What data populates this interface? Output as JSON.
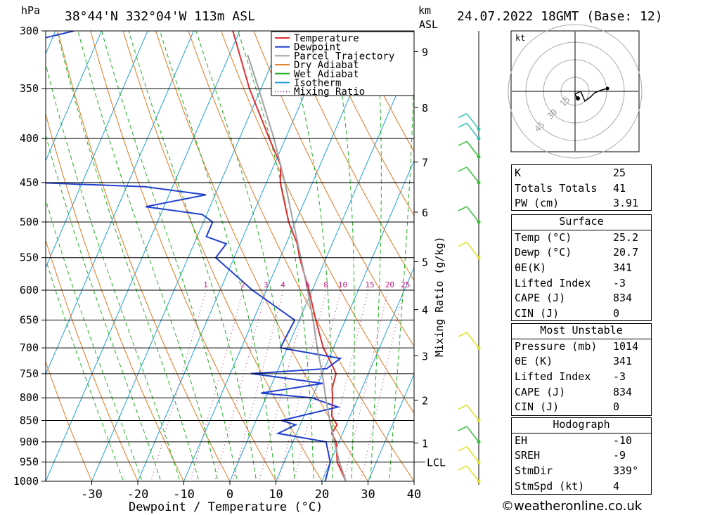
{
  "header": {
    "location": "38°44'N  332°04'W  113m  ASL",
    "datetime": "24.07.2022  18GMT  (Base: 12)",
    "pressure_unit": "hPa",
    "height_unit": "km",
    "height_unit_sub": "ASL"
  },
  "chart_data": {
    "type": "skew-t",
    "title": "38°44'N 332°04'W 113m ASL",
    "xlabel": "Dewpoint / Temperature (°C)",
    "ylabel": "hPa",
    "mixing_ratio_label": "Mixing Ratio (g/kg)",
    "xlim": [
      -40,
      40
    ],
    "ylim": [
      1000,
      300
    ],
    "skew_degC_per_logunit": 35,
    "pressure_ticks": [
      300,
      350,
      400,
      450,
      500,
      550,
      600,
      650,
      700,
      750,
      800,
      850,
      900,
      950,
      1000
    ],
    "temperature_ticks": [
      -30,
      -20,
      -10,
      0,
      10,
      20,
      30,
      40
    ],
    "km_ticks": [
      {
        "label": "1",
        "p": 903
      },
      {
        "label": "2",
        "p": 805
      },
      {
        "label": "3",
        "p": 715
      },
      {
        "label": "4",
        "p": 632
      },
      {
        "label": "5",
        "p": 556
      },
      {
        "label": "6",
        "p": 487
      },
      {
        "label": "7",
        "p": 426
      },
      {
        "label": "8",
        "p": 368
      },
      {
        "label": "9",
        "p": 317
      }
    ],
    "lcl": {
      "label": "LCL",
      "p": 950
    },
    "mixing_ratio_lines": [
      "1",
      "2",
      "3",
      "4",
      "6",
      "8",
      "10",
      "15",
      "20",
      "25"
    ],
    "legend": [
      "Temperature",
      "Dewpoint",
      "Parcel Trajectory",
      "Dry Adiabat",
      "Wet Adiabat",
      "Isotherm",
      "Mixing Ratio"
    ],
    "series": [
      {
        "name": "Temperature",
        "color": "#e03030",
        "points": [
          [
            1000,
            25.2
          ],
          [
            950,
            21.5
          ],
          [
            900,
            19.4
          ],
          [
            880,
            17.6
          ],
          [
            860,
            18.0
          ],
          [
            840,
            16.0
          ],
          [
            800,
            14.5
          ],
          [
            780,
            13.5
          ],
          [
            750,
            13.0
          ],
          [
            720,
            10.0
          ],
          [
            700,
            7.8
          ],
          [
            650,
            3.6
          ],
          [
            600,
            -0.7
          ],
          [
            550,
            -5.8
          ],
          [
            530,
            -7.6
          ],
          [
            500,
            -11.5
          ],
          [
            450,
            -17.0
          ],
          [
            430,
            -18.5
          ],
          [
            400,
            -23.5
          ],
          [
            350,
            -32.5
          ],
          [
            300,
            -41.5
          ]
        ]
      },
      {
        "name": "Dewpoint",
        "color": "#2040d0",
        "points": [
          [
            1000,
            20.7
          ],
          [
            950,
            20.0
          ],
          [
            900,
            17.2
          ],
          [
            880,
            6.0
          ],
          [
            860,
            9.0
          ],
          [
            850,
            5.5
          ],
          [
            820,
            16.5
          ],
          [
            800,
            10.0
          ],
          [
            790,
            -1.5
          ],
          [
            770,
            11.0
          ],
          [
            755,
            -1.0
          ],
          [
            750,
            -5.5
          ],
          [
            740,
            10.5
          ],
          [
            720,
            12.5
          ],
          [
            700,
            -1.5
          ],
          [
            650,
            -1.0
          ],
          [
            600,
            -13.0
          ],
          [
            550,
            -24.0
          ],
          [
            530,
            -23.0
          ],
          [
            520,
            -28.0
          ],
          [
            500,
            -28.0
          ],
          [
            490,
            -31.0
          ],
          [
            480,
            -44.0
          ],
          [
            465,
            -32.0
          ],
          [
            455,
            -46.0
          ],
          [
            450,
            -70.0
          ],
          [
            400,
            -83.0
          ],
          [
            390,
            -86.0
          ],
          [
            310,
            -86.0
          ],
          [
            300,
            -76.0
          ]
        ]
      },
      {
        "name": "Parcel Trajectory",
        "color": "#a0a0a0",
        "points": [
          [
            1000,
            25.2
          ],
          [
            950,
            22.0
          ],
          [
            900,
            19.0
          ],
          [
            850,
            16.0
          ],
          [
            800,
            13.0
          ],
          [
            750,
            10.0
          ],
          [
            700,
            6.5
          ],
          [
            650,
            3.0
          ],
          [
            600,
            -1.0
          ],
          [
            550,
            -5.5
          ],
          [
            500,
            -10.5
          ],
          [
            450,
            -16.0
          ],
          [
            400,
            -22.5
          ],
          [
            350,
            -30.5
          ],
          [
            320,
            -36.0
          ]
        ]
      }
    ],
    "winds": [
      {
        "p": 1000,
        "color": "yellow",
        "label": "1000"
      },
      {
        "p": 950,
        "color": "yellow",
        "label": "950"
      },
      {
        "p": 900,
        "color": "green",
        "label": "900"
      },
      {
        "p": 850,
        "color": "yellow",
        "label": "850"
      },
      {
        "p": 700,
        "color": "yellow",
        "label": "700"
      },
      {
        "p": 550,
        "color": "yellow",
        "label": "550"
      },
      {
        "p": 500,
        "color": "green",
        "label": "500"
      },
      {
        "p": 450,
        "color": "green",
        "label": "450"
      },
      {
        "p": 420,
        "color": "green",
        "label": "420"
      },
      {
        "p": 400,
        "color": "teal",
        "label": "400"
      },
      {
        "p": 390,
        "color": "teal",
        "label": "390"
      }
    ],
    "hodograph": {
      "unit": "kt",
      "rings": [
        "15",
        "30",
        "45"
      ]
    }
  },
  "indices": {
    "general": [
      {
        "label": "K",
        "value": "25"
      },
      {
        "label": "Totals Totals",
        "value": "41"
      },
      {
        "label": "PW (cm)",
        "value": "3.91"
      }
    ],
    "surface": {
      "heading": "Surface",
      "rows": [
        {
          "label": "Temp (°C)",
          "value": "25.2"
        },
        {
          "label": "Dewp (°C)",
          "value": "20.7"
        },
        {
          "label": "θE(K)",
          "value": "341"
        },
        {
          "label": "Lifted Index",
          "value": "-3"
        },
        {
          "label": "CAPE (J)",
          "value": "834"
        },
        {
          "label": "CIN (J)",
          "value": "0"
        }
      ]
    },
    "most_unstable": {
      "heading": "Most Unstable",
      "rows": [
        {
          "label": "Pressure (mb)",
          "value": "1014"
        },
        {
          "label": "θE (K)",
          "value": "341"
        },
        {
          "label": "Lifted Index",
          "value": "-3"
        },
        {
          "label": "CAPE (J)",
          "value": "834"
        },
        {
          "label": "CIN (J)",
          "value": "0"
        }
      ]
    },
    "hodograph": {
      "heading": "Hodograph",
      "rows": [
        {
          "label": "EH",
          "value": "-10"
        },
        {
          "label": "SREH",
          "value": "-9"
        },
        {
          "label": "StmDir",
          "value": "339°"
        },
        {
          "label": "StmSpd (kt)",
          "value": "4"
        }
      ]
    }
  },
  "credit": "©weatheronline.co.uk"
}
